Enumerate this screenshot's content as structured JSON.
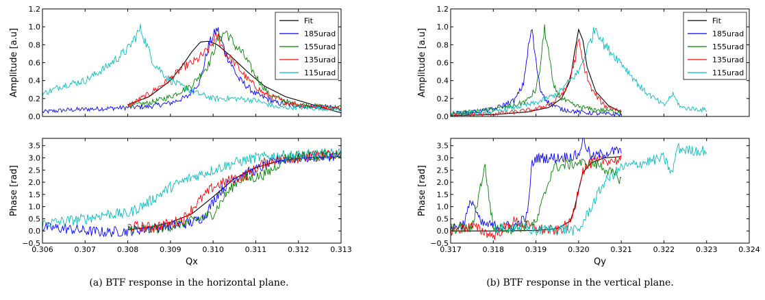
{
  "captions": {
    "left": "(a) BTF response in the horizontal plane.",
    "right": "(b) BTF response in the vertical plane."
  },
  "chart_data": [
    {
      "id": "h_amp",
      "type": "line",
      "xlabel": "",
      "ylabel": "Amplitude [a.u]",
      "xlim": [
        0.306,
        0.313
      ],
      "ylim": [
        0.0,
        1.2
      ],
      "yticks": [
        "0.0",
        "0.2",
        "0.4",
        "0.6",
        "0.8",
        "1.0",
        "1.2"
      ],
      "legend": "top-right",
      "grid": false,
      "series": [
        {
          "name": "Fit",
          "color": "#000000",
          "x": [
            0.308,
            0.3085,
            0.309,
            0.3093,
            0.3095,
            0.3097,
            0.3099,
            0.3101,
            0.3104,
            0.3108,
            0.3112,
            0.3117,
            0.3122,
            0.3127,
            0.313
          ],
          "y": [
            0.13,
            0.22,
            0.4,
            0.58,
            0.72,
            0.83,
            0.84,
            0.8,
            0.68,
            0.5,
            0.34,
            0.22,
            0.15,
            0.08,
            0.04
          ]
        },
        {
          "name": "185urad",
          "color": "#0000ff",
          "x": [
            0.306,
            0.3065,
            0.307,
            0.3075,
            0.308,
            0.3085,
            0.309,
            0.3094,
            0.3097,
            0.3099,
            0.3101,
            0.3103,
            0.3106,
            0.311,
            0.3115,
            0.312,
            0.313
          ],
          "y": [
            0.05,
            0.07,
            0.08,
            0.09,
            0.1,
            0.11,
            0.15,
            0.22,
            0.4,
            0.8,
            0.98,
            0.7,
            0.42,
            0.25,
            0.15,
            0.12,
            0.09
          ]
        },
        {
          "name": "155urad",
          "color": "#008000",
          "x": [
            0.308,
            0.3085,
            0.309,
            0.3095,
            0.3099,
            0.3101,
            0.3103,
            0.3105,
            0.3107,
            0.311,
            0.3113,
            0.3118,
            0.3123,
            0.313
          ],
          "y": [
            0.12,
            0.15,
            0.22,
            0.35,
            0.58,
            0.85,
            0.95,
            0.8,
            0.7,
            0.45,
            0.25,
            0.15,
            0.12,
            0.1
          ]
        },
        {
          "name": "135urad",
          "color": "#ff0000",
          "x": [
            0.308,
            0.3085,
            0.309,
            0.3093,
            0.3096,
            0.3099,
            0.3101,
            0.3103,
            0.3105,
            0.3108,
            0.3112,
            0.3117,
            0.3122,
            0.313
          ],
          "y": [
            0.12,
            0.25,
            0.42,
            0.55,
            0.62,
            0.75,
            0.9,
            0.7,
            0.6,
            0.42,
            0.25,
            0.16,
            0.12,
            0.09
          ]
        },
        {
          "name": "115urad",
          "color": "#00bfbf",
          "x": [
            0.306,
            0.3065,
            0.307,
            0.3075,
            0.308,
            0.3083,
            0.3086,
            0.309,
            0.3095,
            0.31,
            0.3105,
            0.311,
            0.3115,
            0.312,
            0.313
          ],
          "y": [
            0.25,
            0.35,
            0.4,
            0.55,
            0.75,
            0.98,
            0.6,
            0.4,
            0.28,
            0.2,
            0.2,
            0.18,
            0.1,
            0.1,
            0.08
          ]
        }
      ]
    },
    {
      "id": "h_phase",
      "type": "line",
      "xlabel": "Qx",
      "ylabel": "Phase [rad]",
      "xlim": [
        0.306,
        0.313
      ],
      "ylim": [
        -0.5,
        3.8
      ],
      "yticks": [
        "−0.5",
        "0.0",
        "0.5",
        "1.0",
        "1.5",
        "2.0",
        "2.5",
        "3.0",
        "3.5"
      ],
      "xticks": [
        "0.306",
        "0.307",
        "0.308",
        "0.309",
        "0.310",
        "0.311",
        "0.312",
        "0.313"
      ],
      "grid": false,
      "series": [
        {
          "name": "Fit",
          "color": "#000000",
          "x": [
            0.308,
            0.3085,
            0.309,
            0.3095,
            0.31,
            0.3105,
            0.311,
            0.3115,
            0.312,
            0.3125,
            0.313
          ],
          "y": [
            0.05,
            0.15,
            0.35,
            0.7,
            1.4,
            2.15,
            2.6,
            2.85,
            2.98,
            3.03,
            3.05
          ]
        },
        {
          "name": "185urad",
          "color": "#0000ff",
          "x": [
            0.306,
            0.3065,
            0.307,
            0.3075,
            0.308,
            0.3085,
            0.309,
            0.3095,
            0.3098,
            0.3101,
            0.3105,
            0.311,
            0.3115,
            0.312,
            0.3125,
            0.313
          ],
          "y": [
            0.15,
            0.1,
            0.0,
            -0.05,
            0.0,
            0.1,
            0.2,
            0.35,
            0.6,
            1.5,
            2.2,
            2.5,
            2.9,
            3.0,
            3.05,
            3.1
          ]
        },
        {
          "name": "155urad",
          "color": "#008000",
          "x": [
            0.308,
            0.3085,
            0.309,
            0.3095,
            0.31,
            0.3103,
            0.3106,
            0.311,
            0.3113,
            0.3117,
            0.312,
            0.3125,
            0.313
          ],
          "y": [
            0.1,
            0.05,
            0.2,
            0.4,
            0.7,
            1.5,
            2.1,
            2.2,
            2.4,
            3.0,
            3.1,
            3.1,
            3.1
          ]
        },
        {
          "name": "135urad",
          "color": "#ff0000",
          "x": [
            0.308,
            0.3085,
            0.309,
            0.3093,
            0.3096,
            0.31,
            0.3104,
            0.3108,
            0.3112,
            0.3116,
            0.312,
            0.3125,
            0.313
          ],
          "y": [
            0.2,
            0.15,
            0.3,
            0.5,
            1.1,
            1.8,
            2.1,
            2.3,
            2.8,
            3.0,
            3.0,
            3.1,
            3.1
          ]
        },
        {
          "name": "115urad",
          "color": "#00bfbf",
          "x": [
            0.306,
            0.3065,
            0.307,
            0.3075,
            0.308,
            0.3085,
            0.309,
            0.3095,
            0.31,
            0.3105,
            0.311,
            0.3115,
            0.312,
            0.3125,
            0.313
          ],
          "y": [
            0.3,
            0.4,
            0.5,
            0.7,
            0.7,
            1.2,
            1.8,
            2.2,
            2.5,
            2.8,
            3.0,
            3.1,
            3.1,
            3.15,
            3.2
          ]
        }
      ]
    },
    {
      "id": "v_amp",
      "type": "line",
      "xlabel": "",
      "ylabel": "Amplitude [a.u]",
      "xlim": [
        0.317,
        0.324
      ],
      "ylim": [
        0.0,
        1.2
      ],
      "yticks": [
        "0.0",
        "0.2",
        "0.4",
        "0.6",
        "0.8",
        "1.0",
        "1.2"
      ],
      "legend": "top-right",
      "grid": false,
      "series": [
        {
          "name": "Fit",
          "color": "#000000",
          "x": [
            0.317,
            0.318,
            0.3188,
            0.3193,
            0.3196,
            0.3198,
            0.3199,
            0.32,
            0.3201,
            0.3202,
            0.3204,
            0.3207,
            0.321
          ],
          "y": [
            0.01,
            0.02,
            0.05,
            0.1,
            0.2,
            0.4,
            0.7,
            0.97,
            0.85,
            0.55,
            0.28,
            0.12,
            0.05
          ]
        },
        {
          "name": "185urad",
          "color": "#0000ff",
          "x": [
            0.317,
            0.3175,
            0.318,
            0.3185,
            0.3187,
            0.3188,
            0.3189,
            0.319,
            0.3191,
            0.3193,
            0.3196,
            0.32,
            0.3205,
            0.321
          ],
          "y": [
            0.03,
            0.05,
            0.08,
            0.18,
            0.35,
            0.7,
            0.99,
            0.6,
            0.3,
            0.15,
            0.08,
            0.05,
            0.03,
            0.02
          ]
        },
        {
          "name": "155urad",
          "color": "#008000",
          "x": [
            0.317,
            0.3175,
            0.318,
            0.3185,
            0.3188,
            0.319,
            0.3191,
            0.3192,
            0.3193,
            0.3194,
            0.3196,
            0.3199,
            0.3203,
            0.321
          ],
          "y": [
            0.03,
            0.05,
            0.08,
            0.12,
            0.18,
            0.3,
            0.55,
            0.99,
            0.7,
            0.35,
            0.2,
            0.12,
            0.08,
            0.05
          ]
        },
        {
          "name": "135urad",
          "color": "#ff0000",
          "x": [
            0.317,
            0.3175,
            0.318,
            0.3185,
            0.319,
            0.3194,
            0.3197,
            0.3199,
            0.32,
            0.3201,
            0.3203,
            0.3206,
            0.321
          ],
          "y": [
            0.02,
            0.02,
            0.03,
            0.05,
            0.08,
            0.15,
            0.3,
            0.6,
            0.85,
            0.6,
            0.3,
            0.12,
            0.06
          ]
        },
        {
          "name": "115urad",
          "color": "#00bfbf",
          "x": [
            0.317,
            0.318,
            0.3185,
            0.319,
            0.3195,
            0.32,
            0.3202,
            0.3204,
            0.3206,
            0.321,
            0.3215,
            0.322,
            0.3222,
            0.3224,
            0.323
          ],
          "y": [
            0.03,
            0.05,
            0.1,
            0.15,
            0.25,
            0.5,
            0.75,
            1.0,
            0.8,
            0.6,
            0.3,
            0.12,
            0.25,
            0.1,
            0.07
          ]
        }
      ]
    },
    {
      "id": "v_phase",
      "type": "line",
      "xlabel": "Qy",
      "ylabel": "Phase [rad]",
      "xlim": [
        0.317,
        0.324
      ],
      "ylim": [
        -0.5,
        3.8
      ],
      "yticks": [
        "−0.5",
        "0.0",
        "0.5",
        "1.0",
        "1.5",
        "2.0",
        "2.5",
        "3.0",
        "3.5"
      ],
      "xticks": [
        "0.317",
        "0.318",
        "0.319",
        "0.320",
        "0.321",
        "0.322",
        "0.323",
        "0.324"
      ],
      "grid": false,
      "series": [
        {
          "name": "Fit",
          "color": "#000000",
          "x": [
            0.317,
            0.318,
            0.319,
            0.3195,
            0.3198,
            0.3199,
            0.32,
            0.3201,
            0.3203,
            0.3206,
            0.321
          ],
          "y": [
            0.0,
            0.0,
            0.02,
            0.1,
            0.4,
            0.9,
            1.7,
            2.4,
            2.8,
            3.0,
            3.05
          ]
        },
        {
          "name": "185urad",
          "color": "#0000ff",
          "x": [
            0.317,
            0.3173,
            0.3175,
            0.3177,
            0.318,
            0.3185,
            0.3188,
            0.3189,
            0.319,
            0.3195,
            0.32,
            0.3201,
            0.3203,
            0.3206,
            0.321
          ],
          "y": [
            0.1,
            0.3,
            1.3,
            0.3,
            0.2,
            0.2,
            0.6,
            2.7,
            3.0,
            3.0,
            3.1,
            3.8,
            3.0,
            3.2,
            3.3
          ]
        },
        {
          "name": "155urad",
          "color": "#008000",
          "x": [
            0.317,
            0.3175,
            0.3178,
            0.318,
            0.3185,
            0.319,
            0.3192,
            0.3194,
            0.3197,
            0.32,
            0.3205,
            0.321
          ],
          "y": [
            0.1,
            0.1,
            2.7,
            0.1,
            0.1,
            0.3,
            1.5,
            2.6,
            2.7,
            2.8,
            2.7,
            2.1
          ]
        },
        {
          "name": "135urad",
          "color": "#ff0000",
          "x": [
            0.317,
            0.3175,
            0.318,
            0.3185,
            0.319,
            0.3195,
            0.3198,
            0.3199,
            0.32,
            0.3201,
            0.3203,
            0.3206,
            0.321
          ],
          "y": [
            0.0,
            0.2,
            -0.2,
            0.4,
            0.1,
            0.0,
            0.3,
            0.9,
            1.8,
            2.5,
            2.8,
            2.9,
            2.9
          ]
        },
        {
          "name": "115urad",
          "color": "#00bfbf",
          "x": [
            0.318,
            0.3185,
            0.319,
            0.3195,
            0.32,
            0.3203,
            0.3206,
            0.321,
            0.3215,
            0.322,
            0.3222,
            0.3223,
            0.3226,
            0.323
          ],
          "y": [
            0.1,
            0.2,
            0.0,
            0.1,
            0.0,
            1.0,
            2.0,
            2.6,
            2.8,
            3.0,
            2.3,
            3.4,
            3.3,
            3.3
          ]
        }
      ]
    }
  ]
}
